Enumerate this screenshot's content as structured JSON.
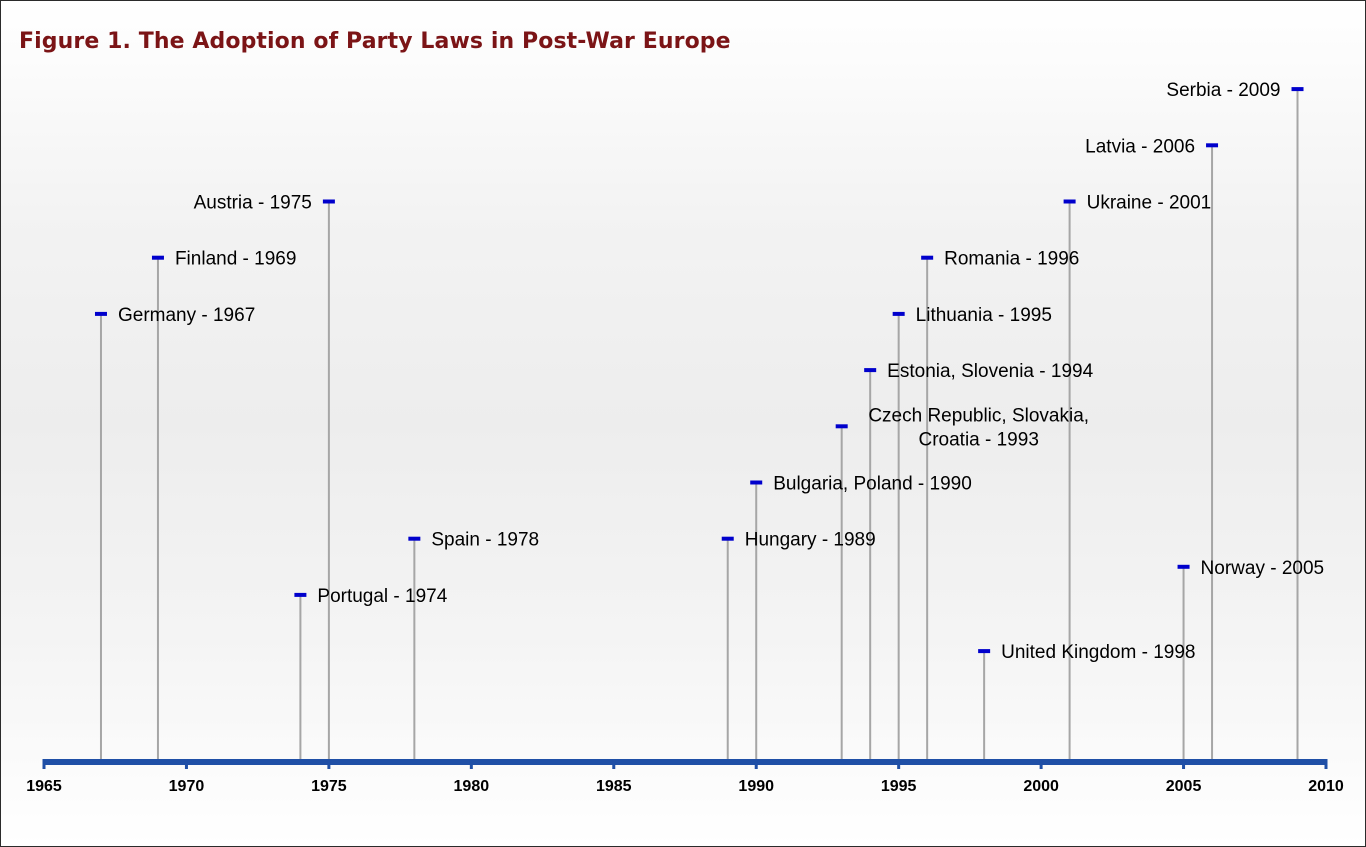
{
  "chart_data": {
    "type": "timeline",
    "title": "Figure 1. The Adoption of Party Laws in Post-War Europe",
    "xlim": [
      1965,
      2010
    ],
    "xticks": [
      "1965",
      "1970",
      "1975",
      "1980",
      "1985",
      "1990",
      "1995",
      "2000",
      "2005",
      "2010"
    ],
    "grid": false,
    "colors": {
      "axis": "#1f4fa6",
      "marker": "#0000cc",
      "stem": "#a6a6a6",
      "title": "#7b1416"
    },
    "events": [
      {
        "year": 1967,
        "label": [
          "Germany - 1967"
        ],
        "level": 8,
        "side": "right"
      },
      {
        "year": 1969,
        "label": [
          "Finland - 1969"
        ],
        "level": 9,
        "side": "right"
      },
      {
        "year": 1974,
        "label": [
          "Portugal - 1974"
        ],
        "level": 3,
        "side": "right"
      },
      {
        "year": 1975,
        "label": [
          "Austria - 1975"
        ],
        "level": 10,
        "side": "left"
      },
      {
        "year": 1978,
        "label": [
          "Spain - 1978"
        ],
        "level": 4,
        "side": "right"
      },
      {
        "year": 1989,
        "label": [
          "Hungary - 1989"
        ],
        "level": 4,
        "side": "right"
      },
      {
        "year": 1990,
        "label": [
          "Bulgaria, Poland - 1990"
        ],
        "level": 5,
        "side": "right"
      },
      {
        "year": 1993,
        "label": [
          "Czech Republic, Slovakia,",
          "Croatia - 1993"
        ],
        "level": 6,
        "side": "right"
      },
      {
        "year": 1994,
        "label": [
          "Estonia, Slovenia - 1994"
        ],
        "level": 7,
        "side": "right"
      },
      {
        "year": 1995,
        "label": [
          "Lithuania - 1995"
        ],
        "level": 8,
        "side": "right"
      },
      {
        "year": 1996,
        "label": [
          "Romania - 1996"
        ],
        "level": 9,
        "side": "right"
      },
      {
        "year": 1998,
        "label": [
          "United Kingdom - 1998"
        ],
        "level": 2,
        "side": "right"
      },
      {
        "year": 2001,
        "label": [
          "Ukraine - 2001"
        ],
        "level": 10,
        "side": "right"
      },
      {
        "year": 2005,
        "label": [
          "Norway - 2005"
        ],
        "level": 3.5,
        "side": "right"
      },
      {
        "year": 2006,
        "label": [
          "Latvia - 2006"
        ],
        "level": 11,
        "side": "left"
      },
      {
        "year": 2009,
        "label": [
          "Serbia - 2009"
        ],
        "level": 12,
        "side": "left"
      }
    ]
  }
}
